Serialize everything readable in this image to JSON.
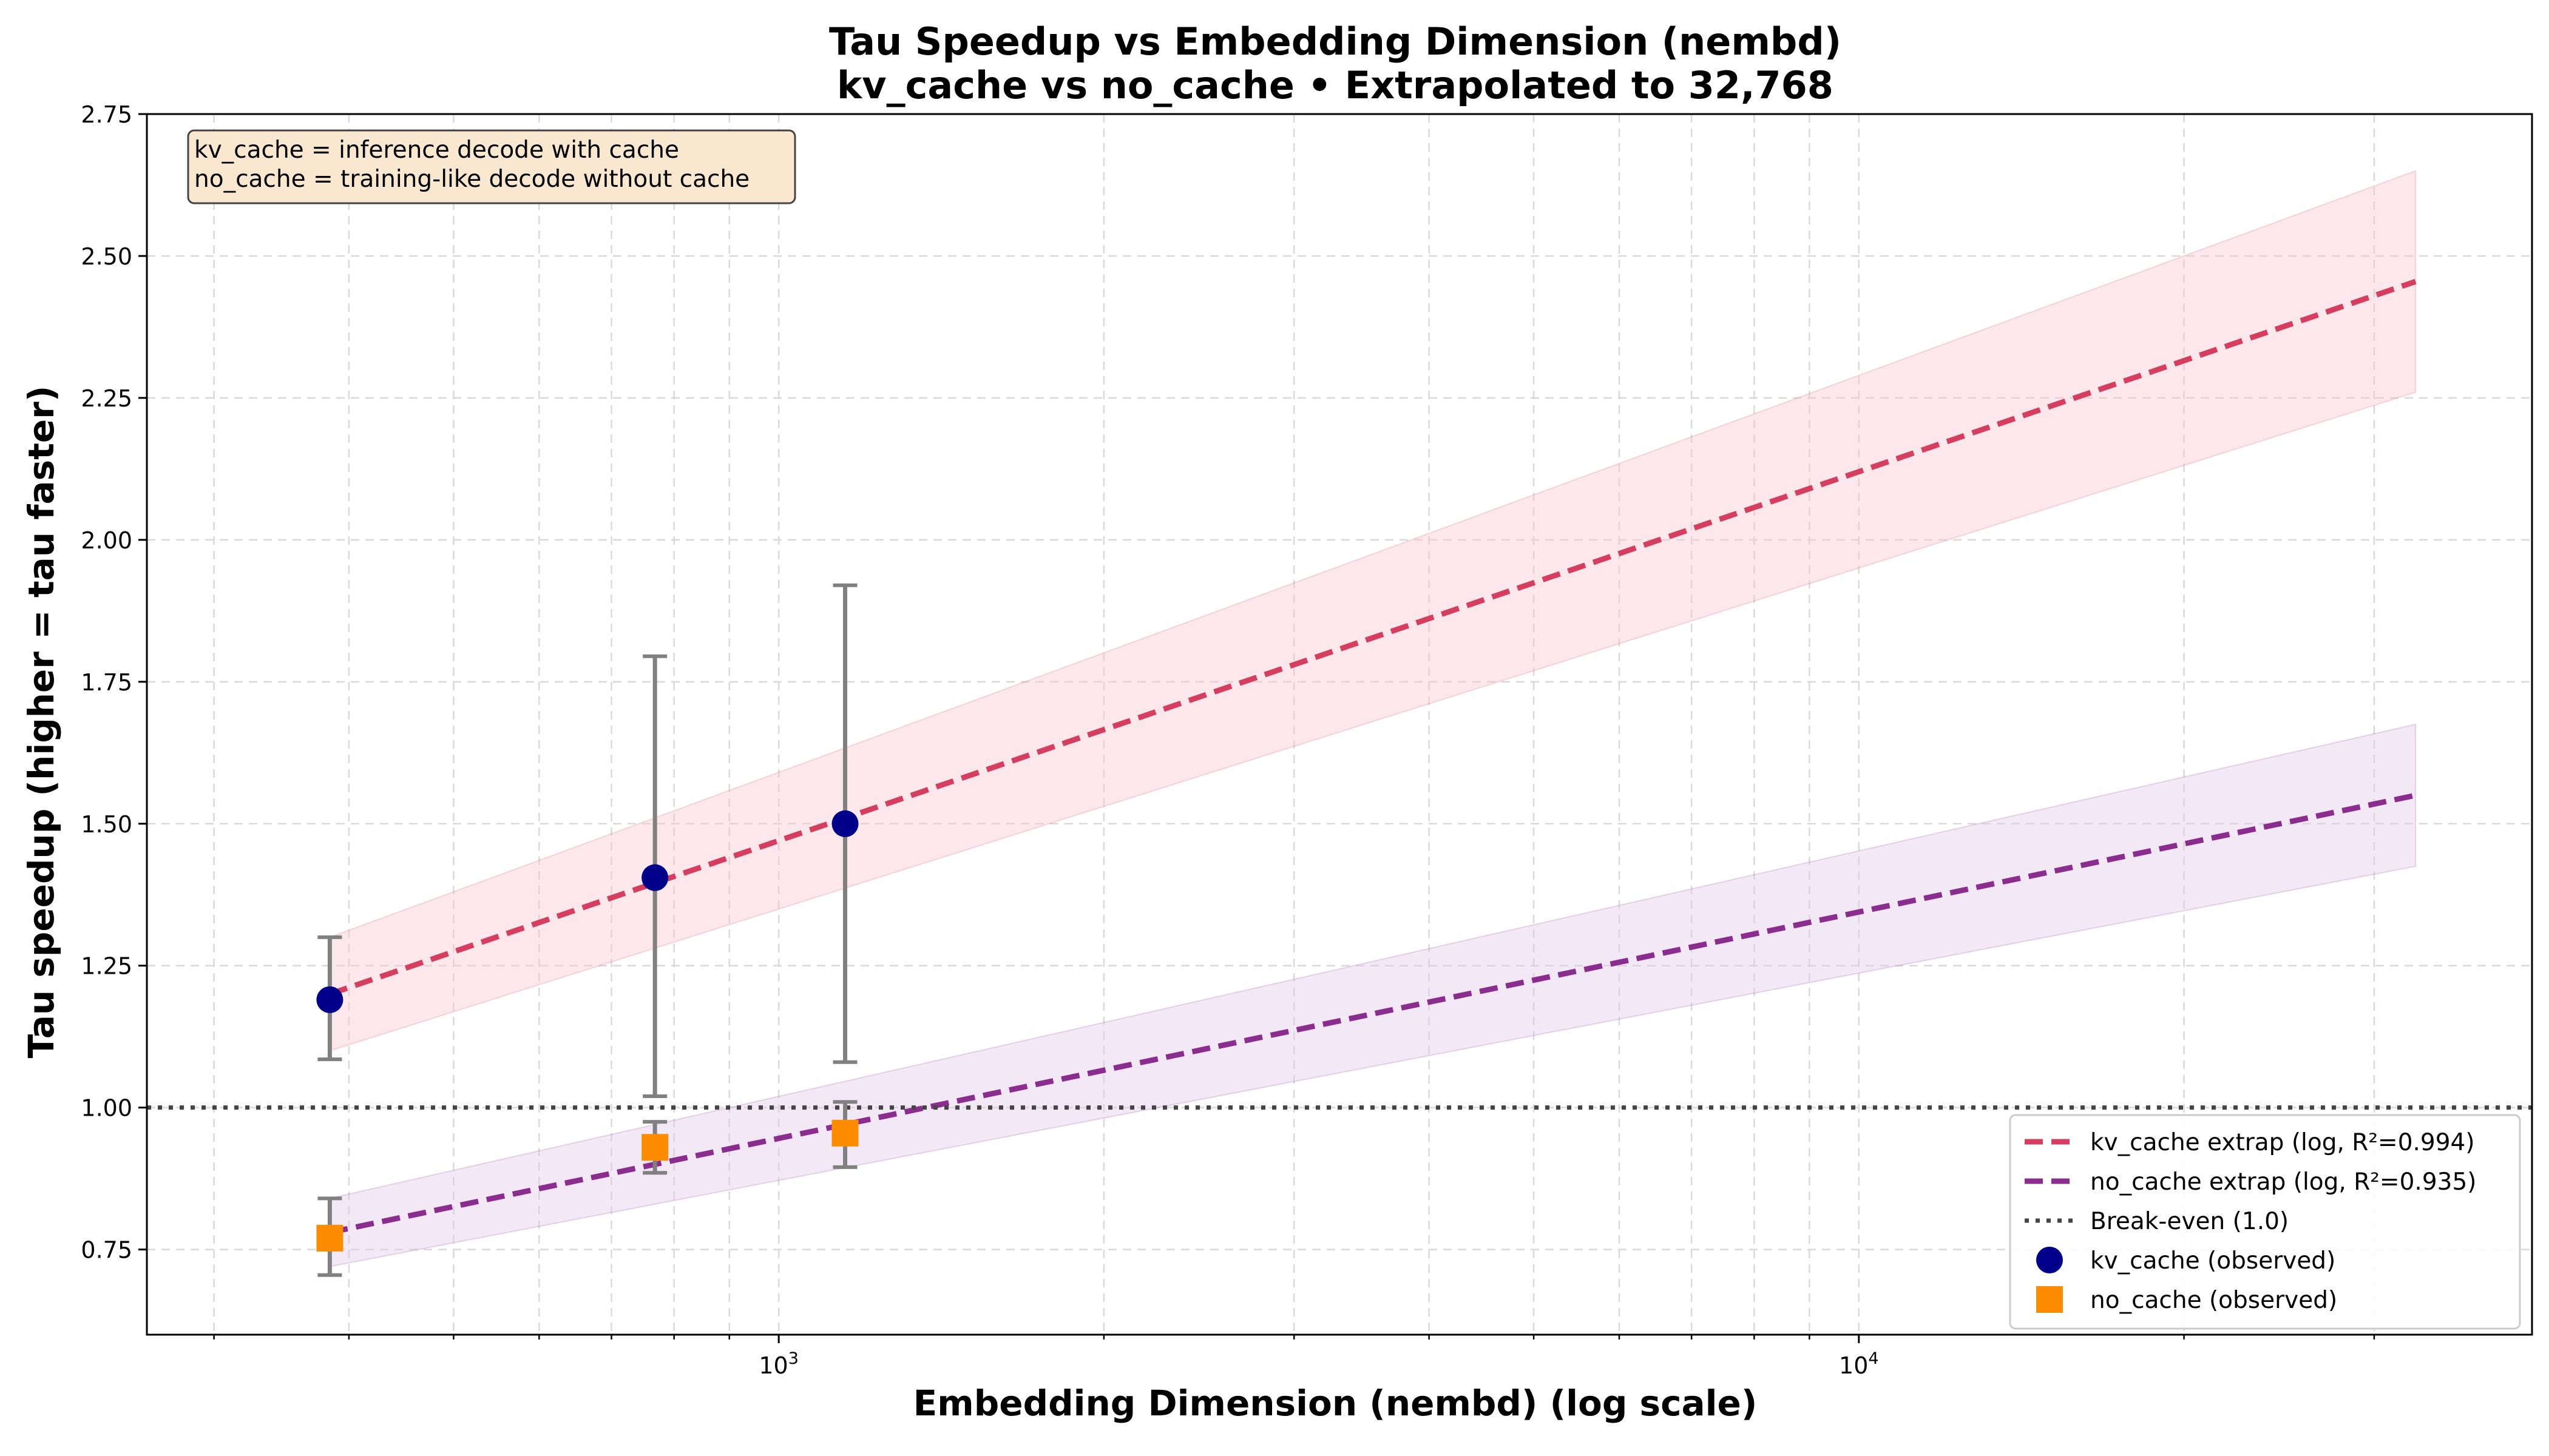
{
  "chart_data": {
    "type": "line",
    "title_line1": "Tau Speedup vs Embedding Dimension (nembd)",
    "title_line2": "kv_cache vs no_cache • Extrapolated to 32,768",
    "xlabel": "Embedding Dimension (nembd) (log scale)",
    "ylabel": "Tau speedup (higher = tau faster)",
    "xscale": "log",
    "xlim": [
      260,
      42000
    ],
    "ylim": [
      0.6,
      2.75
    ],
    "x_major_ticks": [
      {
        "value": 1000,
        "base": "10",
        "exp": "3"
      },
      {
        "value": 10000,
        "base": "10",
        "exp": "4"
      }
    ],
    "x_minor_ticks": [
      300,
      400,
      500,
      600,
      700,
      800,
      900,
      2000,
      3000,
      4000,
      5000,
      6000,
      7000,
      8000,
      9000,
      20000,
      30000
    ],
    "yticks": [
      0.75,
      1.0,
      1.25,
      1.5,
      1.75,
      2.0,
      2.25,
      2.5,
      2.75
    ],
    "ytick_labels": [
      "0.75",
      "1.00",
      "1.25",
      "1.50",
      "1.75",
      "2.00",
      "2.25",
      "2.50",
      "2.75"
    ],
    "grid": true,
    "legend_position": "bottom-right",
    "annotation": {
      "line1": "kv_cache = inference decode with cache",
      "line2": "no_cache = training-like decode without cache"
    },
    "break_even": {
      "y": 1.0,
      "label": "Break-even (1.0)",
      "color": "#444444"
    },
    "series": [
      {
        "name": "kv_cache extrap (log, R²=0.994)",
        "kind": "fit",
        "color": "#d63e5f",
        "band_color": "#f7c6d2",
        "x": [
          384,
          32768
        ],
        "y": [
          1.2,
          2.455
        ],
        "band_lower": [
          1.1,
          2.26
        ],
        "band_upper": [
          1.3,
          2.65
        ]
      },
      {
        "name": "no_cache extrap (log, R²=0.935)",
        "kind": "fit",
        "color": "#8b2c8f",
        "band_color": "#e2c9e6",
        "x": [
          384,
          32768
        ],
        "y": [
          0.78,
          1.55
        ],
        "band_lower": [
          0.72,
          1.425
        ],
        "band_upper": [
          0.84,
          1.675
        ]
      },
      {
        "name": "kv_cache (observed)",
        "kind": "observed",
        "marker": "circle",
        "color": "#00008b",
        "x": [
          384,
          768,
          1152
        ],
        "y": [
          1.19,
          1.405,
          1.5
        ],
        "err_low": [
          1.085,
          1.02,
          1.08
        ],
        "err_high": [
          1.3,
          1.795,
          1.92
        ]
      },
      {
        "name": "no_cache (observed)",
        "kind": "observed",
        "marker": "square",
        "color": "#ff8c00",
        "x": [
          384,
          768,
          1152
        ],
        "y": [
          0.77,
          0.93,
          0.955
        ],
        "err_low": [
          0.705,
          0.885,
          0.895
        ],
        "err_high": [
          0.84,
          0.975,
          1.01
        ]
      }
    ],
    "legend_items": [
      {
        "label": "kv_cache extrap (log, R²=0.994)",
        "style": "dash",
        "color": "#d63e5f"
      },
      {
        "label": "no_cache extrap (log, R²=0.935)",
        "style": "dash",
        "color": "#8b2c8f"
      },
      {
        "label": "Break-even (1.0)",
        "style": "dot",
        "color": "#444444"
      },
      {
        "label": "kv_cache (observed)",
        "style": "circle",
        "color": "#00008b"
      },
      {
        "label": "no_cache (observed)",
        "style": "square",
        "color": "#ff8c00"
      }
    ]
  }
}
